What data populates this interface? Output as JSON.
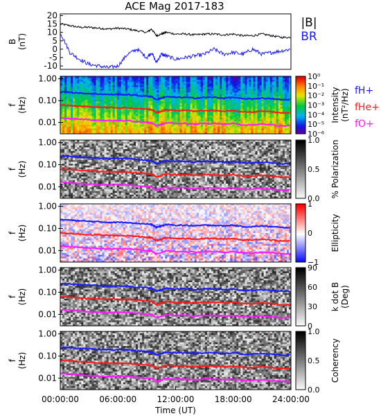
{
  "title": "ACE Mag 2017-183",
  "colors": {
    "total_field": "#000000",
    "radial_field": "#1a1aff",
    "f_H": "#1a1aff",
    "f_He": "#ff1a1a",
    "f_O": "#ff1aff",
    "axis": "#000000"
  },
  "chart_data": [
    {
      "type": "line",
      "panel": "magnetic-field",
      "ylabel": "B",
      "yunit": "(nT)",
      "ylim": [
        -12,
        21
      ],
      "yticks": [
        "20",
        "15",
        "10",
        "5",
        "0",
        "-5",
        "-10"
      ],
      "legend": [
        "|B|",
        "BR"
      ],
      "legend_placement": "right",
      "x_hours": [
        0,
        1,
        2,
        3,
        4,
        5,
        6,
        7,
        8,
        9,
        9.5,
        10,
        10.5,
        11,
        12,
        13,
        14,
        15,
        16,
        17,
        18,
        19,
        20,
        21,
        22,
        23,
        24
      ],
      "series": [
        {
          "name": "|B|",
          "values": [
            15,
            14,
            13,
            13,
            12.5,
            12,
            12.5,
            12,
            11,
            10,
            12,
            8,
            9,
            10,
            9,
            9,
            8.5,
            9,
            9,
            8.5,
            9,
            8,
            8,
            9,
            8,
            7,
            7
          ]
        },
        {
          "name": "BR",
          "values": [
            10,
            -2,
            -6,
            -9,
            -10,
            -11,
            -10,
            -3,
            0,
            -5,
            -2,
            -8,
            -3,
            -4,
            -6,
            -5,
            -4,
            -3,
            0,
            -3,
            -2,
            -3,
            0,
            -3,
            -2,
            -1,
            0
          ]
        }
      ]
    },
    {
      "type": "heatmap",
      "panel": "intensity",
      "ylabel": "f",
      "yunit": "(Hz)",
      "colorbar_label": "Intensity",
      "colorbar_unit": "(nT²/Hz)",
      "colorbar_ticks": [
        "10⁰",
        "10⁻¹",
        "10⁻²",
        "10⁻³",
        "10⁻⁴",
        "10⁻⁵",
        "10⁻⁶"
      ],
      "colorbar_scale": "rainbow",
      "legend": [
        "fH+",
        "fHe+",
        "fO+"
      ]
    },
    {
      "type": "heatmap",
      "panel": "polarization",
      "ylabel": "f",
      "yunit": "(Hz)",
      "colorbar_label": "% Polarization",
      "colorbar_ticks": [
        "1.0",
        "0.5",
        "0.0"
      ],
      "colorbar_scale": "grayscale"
    },
    {
      "type": "heatmap",
      "panel": "ellipticity",
      "ylabel": "f",
      "yunit": "(Hz)",
      "colorbar_label": "Ellipticity",
      "colorbar_ticks": [
        "1",
        "0",
        "−1"
      ],
      "colorbar_scale": "red-white-blue"
    },
    {
      "type": "heatmap",
      "panel": "k-dot-b",
      "ylabel": "f",
      "yunit": "(Hz)",
      "colorbar_label": "k dot B",
      "colorbar_unit": "(Deg)",
      "colorbar_ticks": [
        "90",
        "60",
        "30",
        "0"
      ],
      "colorbar_scale": "grayscale"
    },
    {
      "type": "heatmap",
      "panel": "coherency",
      "ylabel": "f",
      "yunit": "(Hz)",
      "colorbar_label": "Coherency",
      "colorbar_ticks": [
        "1.0",
        "0.5",
        "0.0"
      ],
      "colorbar_scale": "grayscale"
    }
  ],
  "freq_ticks": [
    "1.00",
    "0.10",
    "0.01"
  ],
  "gyro_x_hours": [
    0,
    1,
    2,
    3,
    4,
    5,
    6,
    7,
    8,
    9,
    9.5,
    10,
    10.5,
    11,
    12,
    13,
    14,
    15,
    16,
    17,
    18,
    19,
    20,
    21,
    22,
    23,
    24
  ],
  "gyro_f_H": [
    0.25,
    0.24,
    0.22,
    0.21,
    0.2,
    0.19,
    0.19,
    0.19,
    0.17,
    0.16,
    0.15,
    0.11,
    0.13,
    0.15,
    0.14,
    0.14,
    0.13,
    0.14,
    0.14,
    0.13,
    0.14,
    0.12,
    0.12,
    0.13,
    0.12,
    0.11,
    0.11
  ],
  "gyro_f_He": [
    0.062,
    0.06,
    0.055,
    0.052,
    0.05,
    0.048,
    0.047,
    0.047,
    0.043,
    0.04,
    0.038,
    0.028,
    0.032,
    0.038,
    0.035,
    0.035,
    0.033,
    0.035,
    0.035,
    0.033,
    0.035,
    0.03,
    0.03,
    0.033,
    0.03,
    0.027,
    0.027
  ],
  "gyro_f_O": [
    0.016,
    0.015,
    0.014,
    0.013,
    0.0125,
    0.012,
    0.012,
    0.012,
    0.011,
    0.01,
    0.0095,
    0.007,
    0.008,
    0.0095,
    0.009,
    0.009,
    0.0083,
    0.009,
    0.009,
    0.0083,
    0.009,
    0.0077,
    0.0077,
    0.0083,
    0.0077,
    0.007,
    0.007
  ],
  "xaxis": {
    "ticks": [
      "00:00:00",
      "06:00:00",
      "12:00:00",
      "18:00:00",
      "24:00:00"
    ],
    "label": "Time (UT)",
    "range_hours": [
      0,
      24
    ]
  }
}
